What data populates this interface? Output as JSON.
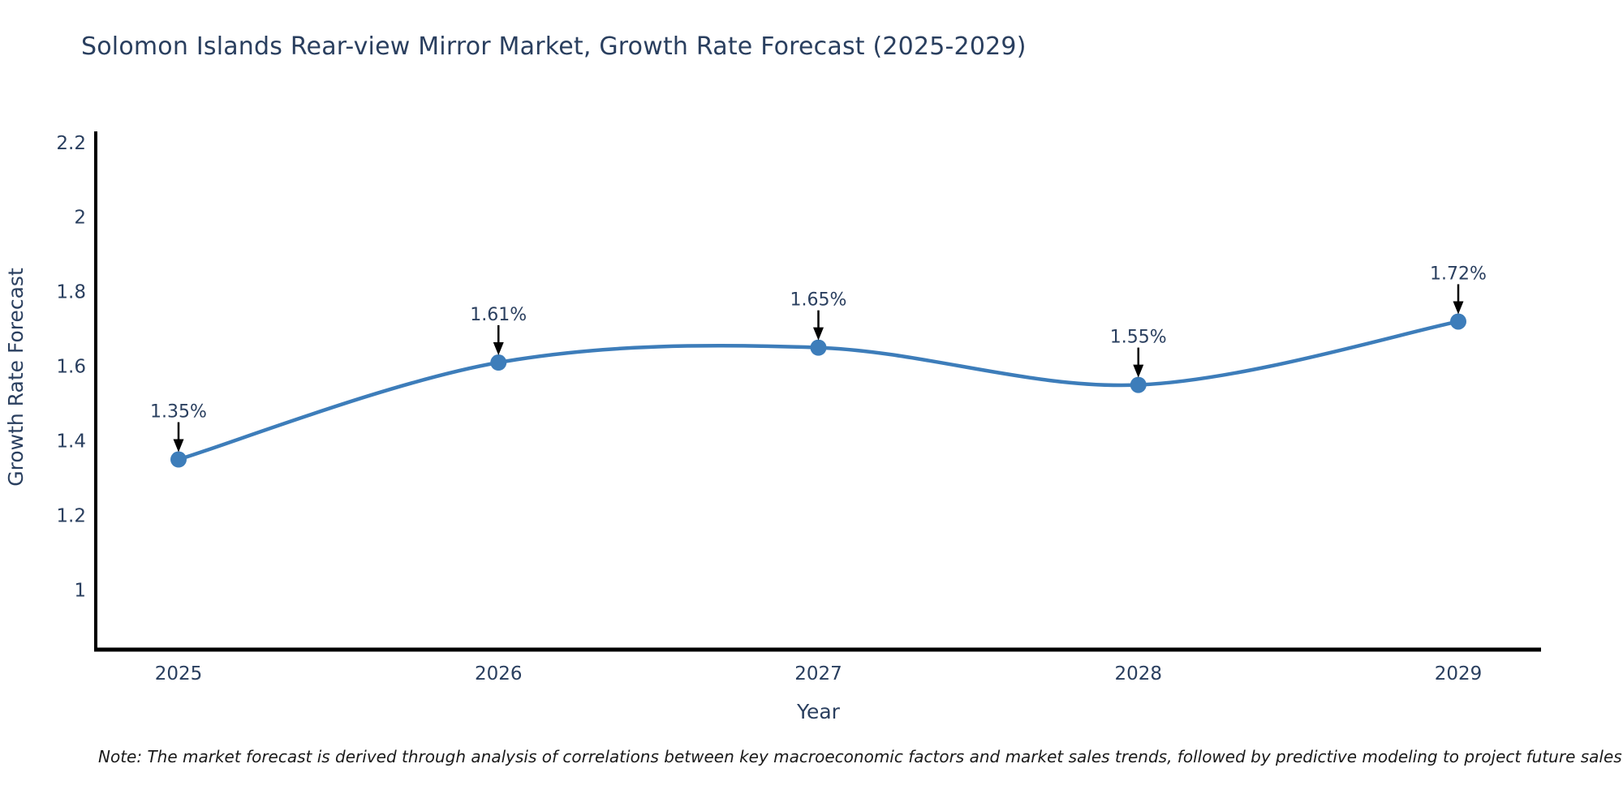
{
  "title": "Solomon Islands Rear-view Mirror Market, Growth Rate Forecast (2025-2029)",
  "note": "Note: The market forecast is derived through analysis of correlations between key macroeconomic factors and market sales trends, followed by predictive modeling to project future sales",
  "chart_data": {
    "type": "line",
    "line_shape": "spline",
    "title": "Solomon Islands Rear-view Mirror Market, Growth Rate Forecast (2025-2029)",
    "categories": [
      "2025",
      "2026",
      "2027",
      "2028",
      "2029"
    ],
    "series": [
      {
        "name": "Growth Rate Forecast",
        "values": [
          1.35,
          1.61,
          1.65,
          1.55,
          1.72
        ],
        "point_labels": [
          "1.35%",
          "1.61%",
          "1.65%",
          "1.55%",
          "1.72%"
        ]
      }
    ],
    "xlabel": "Year",
    "ylabel": "Growth Rate Forecast",
    "yticks": [
      1,
      1.2,
      1.4,
      1.6,
      1.8,
      2,
      2.2
    ],
    "ytick_labels": [
      "1",
      "1.2",
      "1.4",
      "1.6",
      "1.8",
      "2",
      "2.2"
    ],
    "ylim": [
      0.84,
      2.23
    ],
    "grid": false,
    "legend": "none",
    "annotations_have_arrows": true,
    "colors": {
      "line": "#3d7dba",
      "marker": "#3d7dba",
      "axis_line": "#000000",
      "text": "#2a3f5f",
      "arrow": "#000000",
      "note_text": "#1a1a1a",
      "background": "#ffffff"
    }
  }
}
